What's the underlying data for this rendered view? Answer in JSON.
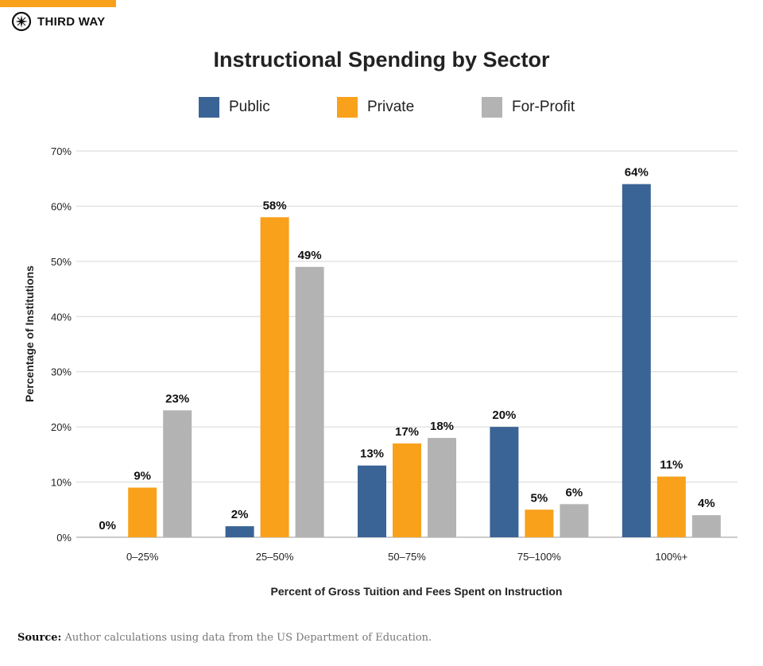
{
  "brand": {
    "name": "THIRD WAY",
    "accent": "#f9a11b"
  },
  "source": {
    "label": "Source:",
    "text": "Author calculations using data from the US Department of Education."
  },
  "chart_data": {
    "type": "bar",
    "title": "Instructional Spending by Sector",
    "xlabel": "Percent of Gross Tuition and Fees Spent on Instruction",
    "ylabel": "Percentage of Institutions",
    "ylim": [
      0,
      70
    ],
    "yticks": [
      "0%",
      "10%",
      "20%",
      "30%",
      "40%",
      "50%",
      "60%",
      "70%"
    ],
    "grid": true,
    "legend_position": "top-center",
    "categories": [
      "0–25%",
      "25–50%",
      "50–75%",
      "75–100%",
      "100%+"
    ],
    "series": [
      {
        "name": "Public",
        "color": "#3b6496",
        "values": [
          0,
          2,
          13,
          20,
          64
        ],
        "labels": [
          "0%",
          "2%",
          "13%",
          "20%",
          "64%"
        ]
      },
      {
        "name": "Private",
        "color": "#f9a11b",
        "values": [
          9,
          58,
          17,
          5,
          11
        ],
        "labels": [
          "9%",
          "58%",
          "17%",
          "5%",
          "11%"
        ]
      },
      {
        "name": "For-Profit",
        "color": "#b3b3b3",
        "values": [
          23,
          49,
          18,
          6,
          4
        ],
        "labels": [
          "23%",
          "49%",
          "18%",
          "6%",
          "4%"
        ]
      }
    ]
  }
}
